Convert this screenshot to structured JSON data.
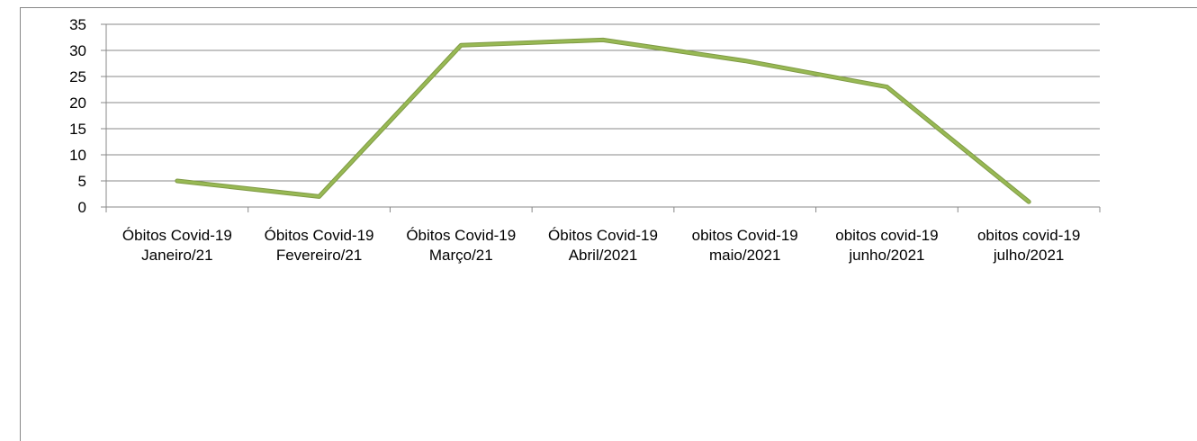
{
  "chart_data": {
    "type": "line",
    "categories": [
      "Óbitos Covid-19 Janeiro/21",
      "Óbitos Covid-19 Fevereiro/21",
      "Óbitos Covid-19 Março/21",
      "Óbitos Covid-19 Abril/2021",
      "obitos Covid-19 maio/2021",
      "obitos covid-19 junho/2021",
      "obitos covid-19 julho/2021"
    ],
    "series": [
      {
        "color": "#98b954",
        "values": [
          5,
          2,
          31,
          32,
          28,
          23,
          1
        ]
      }
    ],
    "ylim": [
      0,
      35
    ],
    "yticks": [
      0,
      5,
      10,
      15,
      20,
      25,
      30,
      35
    ],
    "grid": true
  }
}
